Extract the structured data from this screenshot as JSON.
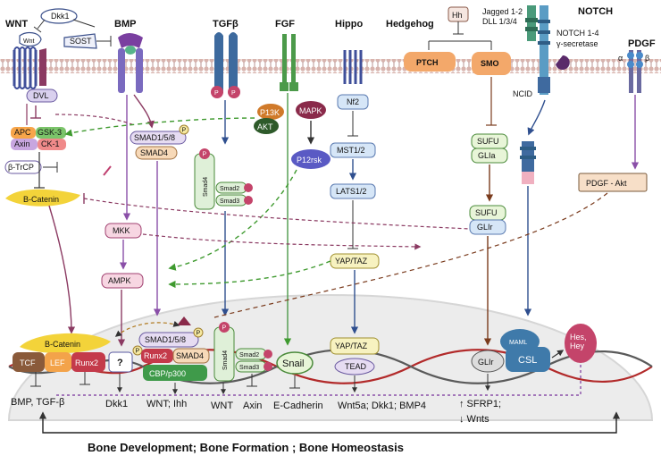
{
  "pathways": {
    "wnt": "WNT",
    "bmp": "BMP",
    "tgfb": "TGFβ",
    "fgf": "FGF",
    "hippo": "Hippo",
    "hedgehog": "Hedgehog",
    "notch": "NOTCH",
    "pdgf": "PDGF"
  },
  "membrane_labels": {
    "dkk1": "Dkk1",
    "sost": "SOST",
    "wnt_ligand": "Wnt",
    "hh": "Hh",
    "ptch": "PTCH",
    "smo": "SMO",
    "jagged": "Jagged 1-2",
    "dll": "DLL 1/3/4",
    "notch_receptor": "NOTCH 1-4",
    "gamma_secretase": "γ-secretase",
    "pdgf_alpha": "α",
    "pdgf_beta": "β"
  },
  "cytoplasm": {
    "dvl": "DVL",
    "apc": "APC",
    "gsk3": "GSK-3",
    "axin": "Axin",
    "ck1": "CK-1",
    "btrcp": "β-TrCP",
    "bcatenin": "B-Catenin",
    "smad158": "SMAD1/5/8",
    "smad4": "SMAD4",
    "p_marker": "P",
    "smad4_vertical": "Smad4",
    "smad2": "Smad2",
    "smad3": "Smad3",
    "p13k": "P13K",
    "akt": "AKT",
    "mapk": "MAPK",
    "p12rsk": "P12rsk",
    "nf2": "Nf2",
    "mst12": "MST1/2",
    "lats12": "LATS1/2",
    "yaptaz": "YAP/TAZ",
    "sufu": "SUFU",
    "glia": "GLIa",
    "glir": "GLIr",
    "ncid": "NCID",
    "pdgf_akt": "PDGF - Akt",
    "mkk": "MKK",
    "ampk": "AMPK"
  },
  "nucleus": {
    "bcatenin": "B-Catenin",
    "tcf": "TCF",
    "lef": "LEF",
    "runx2": "Runx2",
    "unknown": "?",
    "smad158": "SMAD1/5/8",
    "runx2_b": "Runx2",
    "smad4": "SMAD4",
    "cbp": "CBP/p300",
    "smad4_vertical": "Smad4",
    "smad2": "Smad2",
    "smad3": "Smad3",
    "snail": "Snail",
    "yaptaz": "YAP/TAZ",
    "tead": "TEAD",
    "glir": "GLIr",
    "maml": "MAML",
    "csl": "CSL",
    "heshey": "Hes,\nHey"
  },
  "targets": {
    "t1": "BMP, TGF-β",
    "t2": "Dkk1",
    "t3": "WNT; Ihh",
    "t4": "WNT",
    "t5": "Axin",
    "t6": "E-Cadherin",
    "t7": "Wnt5a; Dkk1; BMP4",
    "t8": "↑ SFRP1;",
    "t9": "↓ Wnts"
  },
  "footer": "Bone Development; Bone Formation ; Bone Homeostasis",
  "colors": {
    "membrane": "#c9a9a6",
    "nucleus": "#ececec",
    "wnt_arrow": "#8b3a62",
    "green_dash": "#3f9a2f",
    "blue_arrow": "#2f4f8f",
    "brown_arrow": "#7a3b1d",
    "purple_arrow": "#8a4fa8"
  }
}
